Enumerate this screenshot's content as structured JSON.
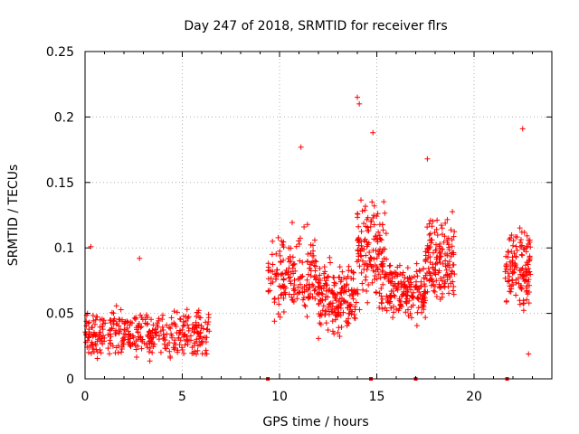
{
  "chart_data": {
    "type": "scatter",
    "title": "Day 247 of 2018, SRMTID for receiver flrs",
    "xlabel": "GPS time / hours",
    "ylabel": "SRMTID / TECUs",
    "xlim": [
      0,
      24
    ],
    "ylim": [
      0,
      0.25
    ],
    "grid": true,
    "x_ticks": [
      0,
      5,
      10,
      15,
      20
    ],
    "x_tick_labels": [
      "0",
      "5",
      "10",
      "15",
      "20"
    ],
    "y_ticks": [
      0,
      0.05,
      0.1,
      0.15,
      0.2,
      0.25
    ],
    "y_tick_labels": [
      "0",
      "0.05",
      "0.1",
      "0.15",
      "0.2",
      "0.25"
    ],
    "marker": "+",
    "color": "#ff0000",
    "series": [
      {
        "name": "SRMTID",
        "clusters": [
          {
            "x_range": [
              0.0,
              6.4
            ],
            "y_base": 0.034,
            "y_spread": 0.025,
            "count": 380
          },
          {
            "x_range": [
              9.4,
              12.0
            ],
            "y_base": 0.078,
            "y_spread": 0.045,
            "count": 180
          },
          {
            "x_range": [
              12.0,
              14.0
            ],
            "y_base": 0.062,
            "y_spread": 0.035,
            "count": 180
          },
          {
            "x_range": [
              14.0,
              15.5
            ],
            "y_base": 0.095,
            "y_spread": 0.06,
            "count": 150
          },
          {
            "x_range": [
              15.5,
              17.5
            ],
            "y_base": 0.065,
            "y_spread": 0.03,
            "count": 170
          },
          {
            "x_range": [
              17.5,
              19.0
            ],
            "y_base": 0.09,
            "y_spread": 0.045,
            "count": 150
          },
          {
            "x_range": [
              21.6,
              22.9
            ],
            "y_base": 0.085,
            "y_spread": 0.045,
            "count": 130
          }
        ],
        "notable_points": [
          {
            "x": 0.3,
            "y": 0.101
          },
          {
            "x": 2.8,
            "y": 0.092
          },
          {
            "x": 11.1,
            "y": 0.177
          },
          {
            "x": 14.0,
            "y": 0.215
          },
          {
            "x": 14.1,
            "y": 0.21
          },
          {
            "x": 14.8,
            "y": 0.188
          },
          {
            "x": 17.6,
            "y": 0.168
          },
          {
            "x": 22.5,
            "y": 0.191
          },
          {
            "x": 22.8,
            "y": 0.019
          }
        ],
        "zero_markers": [
          9.4,
          14.7,
          17.0,
          21.7
        ]
      }
    ]
  }
}
